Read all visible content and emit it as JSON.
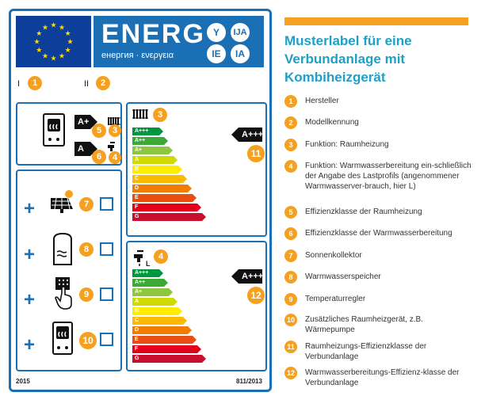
{
  "label": {
    "energ_word": "ENERG",
    "energ_sub": "енергия · ενεργεια",
    "lang_codes": [
      "Y",
      "IJA",
      "IE",
      "IA"
    ],
    "roman_one": "I",
    "roman_two": "II",
    "footer_year": "2015",
    "footer_regulation": "811/2013",
    "package_class_space": "A+",
    "package_class_water": "A",
    "heating_scale_class": "A+++",
    "water_scale_class": "A+++",
    "water_profile": "L",
    "scale_labels": [
      "A+++",
      "A++",
      "A+",
      "A",
      "B",
      "C",
      "D",
      "E",
      "F",
      "G"
    ],
    "scale_colors": [
      "#00963f",
      "#3aa935",
      "#8dc63f",
      "#cfdb00",
      "#ffed00",
      "#fbba00",
      "#f07d00",
      "#e84e0f",
      "#e2001a",
      "#c80f2e"
    ],
    "numbers": [
      "1",
      "2",
      "3",
      "4",
      "5",
      "6",
      "7",
      "8",
      "9",
      "10",
      "11",
      "12"
    ]
  },
  "panel": {
    "title": "Musterlabel für eine Verbundanlage mit Kombiheizgerät",
    "items": [
      {
        "num": "1",
        "text": "Hersteller"
      },
      {
        "num": "2",
        "text": "Modellkennung"
      },
      {
        "num": "3",
        "text": "Funktion: Raumheizung"
      },
      {
        "num": "4",
        "text": "Funktion: Warmwasserbereitung ein-schließlich der Angabe des Lastprofils (angenommener Warmwasserver-brauch, hier L)"
      },
      {
        "num": "5",
        "text": "Effizienzklasse der Raumheizung"
      },
      {
        "num": "6",
        "text": "Effizienzklasse der Warmwasserbereitung"
      },
      {
        "num": "7",
        "text": "Sonnenkollektor"
      },
      {
        "num": "8",
        "text": "Warmwasserspeicher"
      },
      {
        "num": "9",
        "text": "Temperaturregler"
      },
      {
        "num": "10",
        "text": "Zusätzliches Raumheizgerät, z.B. Wärmepumpe"
      },
      {
        "num": "11",
        "text": "Raumheizungs-Effizienzklasse der Verbundanlage"
      },
      {
        "num": "12",
        "text": "Warmwasserbereitungs-Effizienz-klasse der Verbundanlage"
      }
    ]
  }
}
